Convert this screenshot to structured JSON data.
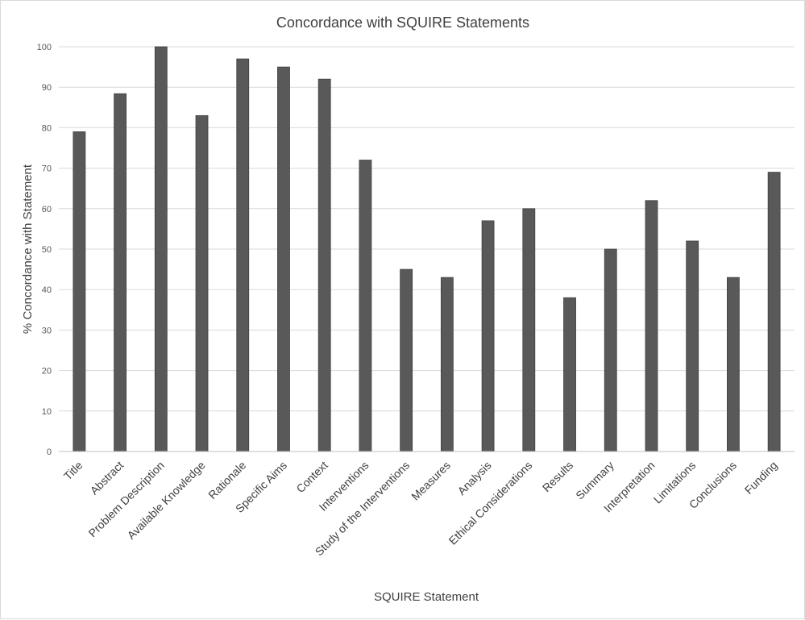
{
  "chart_data": {
    "type": "bar",
    "title": "Concordance with SQUIRE Statements",
    "xlabel": "SQUIRE Statement",
    "ylabel": "% Concordance with Statement",
    "categories": [
      "Title",
      "Abstract",
      "Problem Description",
      "Available Knowledge",
      "Rationale",
      "Specific Aims",
      "Context",
      "Interventions",
      "Study of the Interventions",
      "Measures",
      "Analysis",
      "Ethical Considerations",
      "Results",
      "Summary",
      "Interpretation",
      "Limitations",
      "Conclusions",
      "Funding"
    ],
    "values": [
      79,
      88.4,
      100,
      83,
      97,
      95,
      92,
      72,
      45,
      43,
      57,
      60,
      38,
      50,
      62,
      52,
      43,
      69
    ],
    "ylim": [
      0,
      100
    ],
    "yticks": [
      "0",
      "10",
      "20",
      "30",
      "40",
      "50",
      "60",
      "70",
      "80",
      "90",
      "100"
    ],
    "grid": "horizontal",
    "legend": "none",
    "colors": {
      "bar": "#595959",
      "bar_edge": "#3f3f3f",
      "grid": "#d9d9d9",
      "axis": "#bfbfbf"
    }
  }
}
